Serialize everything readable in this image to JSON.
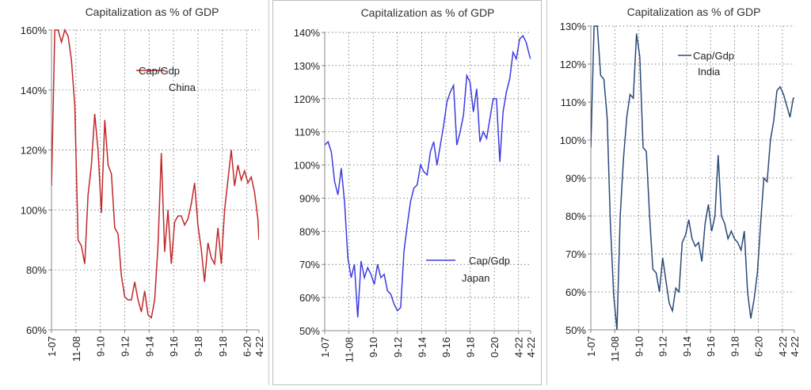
{
  "chart_data": [
    {
      "type": "line",
      "title": "Capitalization  as % of GDP",
      "legend": {
        "name": "Cap/Gdp",
        "sub": "China",
        "placement": "top-right"
      },
      "color": "#c0282a",
      "ylim": [
        0.6,
        1.6
      ],
      "yticks": [
        0.6,
        0.8,
        1.0,
        1.2,
        1.4,
        1.6
      ],
      "ytick_labels": [
        "60%",
        "80%",
        "100%",
        "120%",
        "140%",
        "160%"
      ],
      "xlim": [
        0,
        187
      ],
      "xticks": [
        0,
        22,
        44,
        66,
        88,
        110,
        132,
        154,
        176,
        187
      ],
      "xtick_labels": [
        "1-07",
        "11-08",
        "9-10",
        "9-12",
        "9-14",
        "9-16",
        "9-18",
        "9-18",
        "6-20",
        "4-22"
      ],
      "grid": true,
      "x": [
        0,
        3,
        6,
        9,
        12,
        15,
        18,
        21,
        24,
        27,
        30,
        33,
        36,
        39,
        42,
        45,
        48,
        51,
        54,
        57,
        60,
        63,
        66,
        69,
        72,
        75,
        78,
        81,
        84,
        87,
        90,
        93,
        96,
        99,
        102,
        105,
        108,
        111,
        114,
        117,
        120,
        123,
        126,
        129,
        132,
        135,
        138,
        141,
        144,
        147,
        150,
        153,
        156,
        159,
        162,
        165,
        168,
        171,
        174,
        177,
        180,
        183,
        186,
        187
      ],
      "values": [
        1.08,
        1.6,
        1.6,
        1.56,
        1.6,
        1.58,
        1.5,
        1.35,
        0.9,
        0.88,
        0.82,
        1.05,
        1.15,
        1.32,
        1.2,
        0.99,
        1.3,
        1.15,
        1.12,
        0.94,
        0.92,
        0.78,
        0.71,
        0.7,
        0.7,
        0.76,
        0.7,
        0.66,
        0.73,
        0.65,
        0.64,
        0.7,
        0.88,
        1.19,
        0.86,
        1.0,
        0.82,
        0.96,
        0.98,
        0.98,
        0.95,
        0.97,
        1.02,
        1.09,
        0.95,
        0.87,
        0.76,
        0.89,
        0.84,
        0.82,
        0.94,
        0.82,
        1.0,
        1.1,
        1.2,
        1.08,
        1.15,
        1.1,
        1.13,
        1.09,
        1.11,
        1.06,
        0.97,
        0.9
      ]
    },
    {
      "type": "line",
      "title": "Capitalization  as % of GDP",
      "legend": {
        "name": "Cap/Gdp",
        "sub": "Japan",
        "placement": "lower-right"
      },
      "color": "#3c3ce0",
      "ylim": [
        0.5,
        1.4
      ],
      "yticks": [
        0.5,
        0.6,
        0.7,
        0.8,
        0.9,
        1.0,
        1.1,
        1.2,
        1.3,
        1.4
      ],
      "ytick_labels": [
        "50%",
        "60%",
        "70%",
        "80%",
        "90%",
        "100%",
        "110%",
        "120%",
        "130%",
        "140%"
      ],
      "xlim": [
        0,
        187
      ],
      "xticks": [
        0,
        22,
        44,
        66,
        88,
        110,
        132,
        154,
        176,
        187
      ],
      "xtick_labels": [
        "1-07",
        "11-08",
        "9-10",
        "9-12",
        "9-14",
        "9-16",
        "9-18",
        "0-20",
        "4-22",
        "4-22"
      ],
      "grid": true,
      "x": [
        0,
        3,
        6,
        9,
        12,
        15,
        18,
        21,
        24,
        27,
        30,
        33,
        36,
        39,
        42,
        45,
        48,
        51,
        54,
        57,
        60,
        63,
        66,
        69,
        72,
        75,
        78,
        81,
        84,
        87,
        90,
        93,
        96,
        99,
        102,
        105,
        108,
        111,
        114,
        117,
        120,
        123,
        126,
        129,
        132,
        135,
        138,
        141,
        144,
        147,
        150,
        153,
        156,
        159,
        162,
        165,
        168,
        171,
        174,
        177,
        180,
        183,
        186,
        187
      ],
      "values": [
        1.06,
        1.07,
        1.04,
        0.95,
        0.91,
        0.99,
        0.89,
        0.72,
        0.66,
        0.7,
        0.54,
        0.71,
        0.66,
        0.69,
        0.67,
        0.64,
        0.7,
        0.66,
        0.67,
        0.62,
        0.61,
        0.58,
        0.56,
        0.57,
        0.74,
        0.82,
        0.89,
        0.93,
        0.94,
        1.0,
        0.98,
        0.97,
        1.04,
        1.07,
        1.0,
        1.06,
        1.12,
        1.19,
        1.22,
        1.24,
        1.06,
        1.1,
        1.15,
        1.27,
        1.25,
        1.16,
        1.23,
        1.07,
        1.1,
        1.08,
        1.14,
        1.2,
        1.2,
        1.01,
        1.16,
        1.22,
        1.26,
        1.34,
        1.32,
        1.38,
        1.39,
        1.37,
        1.33,
        1.32
      ]
    },
    {
      "type": "line",
      "title": "Capitalization as % of GDP",
      "legend": {
        "name": "Cap/Gdp",
        "sub": "India",
        "placement": "top-right"
      },
      "color": "#2a4a78",
      "ylim": [
        0.5,
        1.3
      ],
      "yticks": [
        0.5,
        0.6,
        0.7,
        0.8,
        0.9,
        1.0,
        1.1,
        1.2,
        1.3
      ],
      "ytick_labels": [
        "50%",
        "60%",
        "70%",
        "80%",
        "90%",
        "100%",
        "110%",
        "120%",
        "130%"
      ],
      "xlim": [
        0,
        187
      ],
      "xticks": [
        0,
        22,
        44,
        66,
        88,
        110,
        132,
        154,
        176,
        187
      ],
      "xtick_labels": [
        "1-07",
        "11-08",
        "9-10",
        "9-12",
        "9-14",
        "9-16",
        "9-18",
        "6-20",
        "4-22",
        "4-22"
      ],
      "grid": true,
      "x": [
        0,
        3,
        6,
        9,
        12,
        15,
        18,
        21,
        24,
        27,
        30,
        33,
        36,
        39,
        42,
        45,
        48,
        51,
        54,
        57,
        60,
        63,
        66,
        69,
        72,
        75,
        78,
        81,
        84,
        87,
        90,
        93,
        96,
        99,
        102,
        105,
        108,
        111,
        114,
        117,
        120,
        123,
        126,
        129,
        132,
        135,
        138,
        141,
        144,
        147,
        150,
        153,
        156,
        159,
        162,
        165,
        168,
        171,
        174,
        177,
        180,
        183,
        186,
        187
      ],
      "values": [
        0.98,
        1.3,
        1.3,
        1.17,
        1.16,
        1.06,
        0.78,
        0.59,
        0.5,
        0.8,
        0.95,
        1.06,
        1.12,
        1.11,
        1.28,
        1.22,
        0.98,
        0.97,
        0.8,
        0.66,
        0.65,
        0.6,
        0.69,
        0.63,
        0.57,
        0.55,
        0.61,
        0.6,
        0.73,
        0.75,
        0.79,
        0.74,
        0.72,
        0.73,
        0.68,
        0.78,
        0.83,
        0.76,
        0.8,
        0.96,
        0.8,
        0.78,
        0.74,
        0.76,
        0.74,
        0.73,
        0.71,
        0.76,
        0.6,
        0.53,
        0.58,
        0.65,
        0.78,
        0.9,
        0.89,
        1.0,
        1.05,
        1.13,
        1.14,
        1.12,
        1.09,
        1.06,
        1.11,
        1.11
      ]
    }
  ]
}
